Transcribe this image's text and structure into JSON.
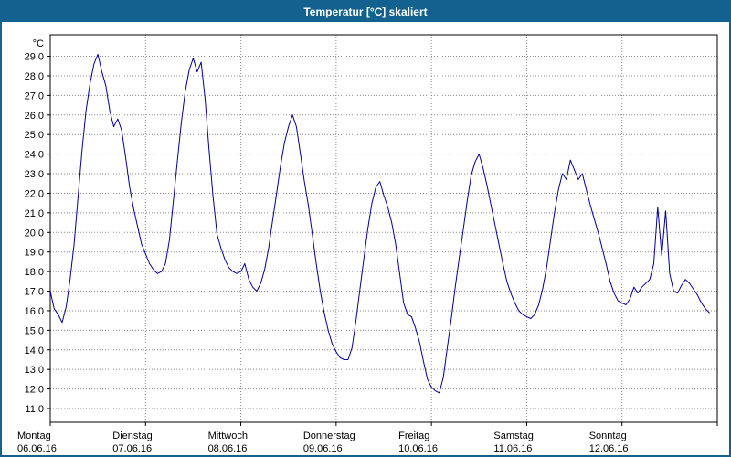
{
  "window": {
    "title": "Temperatur [°C] skaliert"
  },
  "colors": {
    "titlebar": "#12618e",
    "line": "#00009a",
    "grid": "#8a8a8a",
    "axis": "#000000",
    "text": "#000000"
  },
  "chart_data": {
    "type": "line",
    "title": "Temperatur [°C] skaliert",
    "y_axis": {
      "unit": "°C",
      "min": 11,
      "max": 29,
      "step": 1,
      "decimal_separator": ",",
      "tick_labels": [
        "11,0",
        "12,0",
        "13,0",
        "14,0",
        "15,0",
        "16,0",
        "17,0",
        "18,0",
        "19,0",
        "20,0",
        "21,0",
        "22,0",
        "23,0",
        "24,0",
        "25,0",
        "26,0",
        "27,0",
        "28,0",
        "29,0"
      ]
    },
    "x_axis": {
      "unit": "days",
      "days": [
        {
          "label": "Montag",
          "date": "06.06.16"
        },
        {
          "label": "Dienstag",
          "date": "07.06.16"
        },
        {
          "label": "Mittwoch",
          "date": "08.06.16"
        },
        {
          "label": "Donnerstag",
          "date": "09.06.16"
        },
        {
          "label": "Freitag",
          "date": "10.06.16"
        },
        {
          "label": "Samstag",
          "date": "11.06.16"
        },
        {
          "label": "Sonntag",
          "date": "12.06.16"
        }
      ]
    },
    "grid": true,
    "legend": false,
    "series": [
      {
        "name": "Temperatur [°C]",
        "x_unit": "hours_from_monday_00",
        "points": [
          [
            0,
            17.0
          ],
          [
            1,
            16.1
          ],
          [
            2,
            15.8
          ],
          [
            3,
            15.4
          ],
          [
            4,
            16.2
          ],
          [
            5,
            17.6
          ],
          [
            6,
            19.4
          ],
          [
            7,
            21.8
          ],
          [
            8,
            24.2
          ],
          [
            9,
            26.2
          ],
          [
            10,
            27.6
          ],
          [
            11,
            28.6
          ],
          [
            12,
            29.1
          ],
          [
            13,
            28.2
          ],
          [
            14,
            27.5
          ],
          [
            15,
            26.2
          ],
          [
            16,
            25.4
          ],
          [
            17,
            25.8
          ],
          [
            18,
            25.2
          ],
          [
            19,
            23.8
          ],
          [
            20,
            22.3
          ],
          [
            21,
            21.2
          ],
          [
            22,
            20.3
          ],
          [
            23,
            19.4
          ],
          [
            24,
            18.9
          ],
          [
            25,
            18.4
          ],
          [
            26,
            18.1
          ],
          [
            27,
            17.9
          ],
          [
            28,
            18.0
          ],
          [
            29,
            18.4
          ],
          [
            30,
            19.6
          ],
          [
            31,
            21.6
          ],
          [
            32,
            23.6
          ],
          [
            33,
            25.6
          ],
          [
            34,
            27.2
          ],
          [
            35,
            28.3
          ],
          [
            36,
            28.9
          ],
          [
            37,
            28.2
          ],
          [
            38,
            28.7
          ],
          [
            39,
            26.8
          ],
          [
            40,
            24.2
          ],
          [
            41,
            21.8
          ],
          [
            42,
            19.9
          ],
          [
            43,
            19.2
          ],
          [
            44,
            18.6
          ],
          [
            45,
            18.2
          ],
          [
            46,
            18.0
          ],
          [
            47,
            17.9
          ],
          [
            48,
            18.0
          ],
          [
            49,
            18.4
          ],
          [
            50,
            17.6
          ],
          [
            51,
            17.2
          ],
          [
            52,
            17.0
          ],
          [
            53,
            17.4
          ],
          [
            54,
            18.1
          ],
          [
            55,
            19.2
          ],
          [
            56,
            20.6
          ],
          [
            57,
            22.0
          ],
          [
            58,
            23.4
          ],
          [
            59,
            24.6
          ],
          [
            60,
            25.4
          ],
          [
            61,
            26.0
          ],
          [
            62,
            25.4
          ],
          [
            63,
            24.0
          ],
          [
            64,
            22.6
          ],
          [
            65,
            21.4
          ],
          [
            66,
            19.9
          ],
          [
            67,
            18.4
          ],
          [
            68,
            17.0
          ],
          [
            69,
            15.9
          ],
          [
            70,
            15.0
          ],
          [
            71,
            14.3
          ],
          [
            72,
            13.9
          ],
          [
            73,
            13.6
          ],
          [
            74,
            13.5
          ],
          [
            75,
            13.5
          ],
          [
            76,
            14.1
          ],
          [
            77,
            15.5
          ],
          [
            78,
            17.1
          ],
          [
            79,
            18.7
          ],
          [
            80,
            20.2
          ],
          [
            81,
            21.5
          ],
          [
            82,
            22.3
          ],
          [
            83,
            22.6
          ],
          [
            84,
            21.9
          ],
          [
            85,
            21.3
          ],
          [
            86,
            20.5
          ],
          [
            87,
            19.4
          ],
          [
            88,
            17.9
          ],
          [
            89,
            16.4
          ],
          [
            90,
            15.8
          ],
          [
            91,
            15.7
          ],
          [
            92,
            15.1
          ],
          [
            93,
            14.4
          ],
          [
            94,
            13.4
          ],
          [
            95,
            12.5
          ],
          [
            96,
            12.1
          ],
          [
            97,
            11.9
          ],
          [
            98,
            11.8
          ],
          [
            99,
            12.6
          ],
          [
            100,
            14.1
          ],
          [
            101,
            15.6
          ],
          [
            102,
            17.2
          ],
          [
            103,
            18.7
          ],
          [
            104,
            20.1
          ],
          [
            105,
            21.6
          ],
          [
            106,
            22.9
          ],
          [
            107,
            23.6
          ],
          [
            108,
            24.0
          ],
          [
            109,
            23.3
          ],
          [
            110,
            22.4
          ],
          [
            111,
            21.4
          ],
          [
            112,
            20.4
          ],
          [
            113,
            19.4
          ],
          [
            114,
            18.4
          ],
          [
            115,
            17.5
          ],
          [
            116,
            16.9
          ],
          [
            117,
            16.4
          ],
          [
            118,
            16.0
          ],
          [
            119,
            15.8
          ],
          [
            120,
            15.7
          ],
          [
            121,
            15.6
          ],
          [
            122,
            15.8
          ],
          [
            123,
            16.3
          ],
          [
            124,
            17.1
          ],
          [
            125,
            18.2
          ],
          [
            126,
            19.6
          ],
          [
            127,
            21.0
          ],
          [
            128,
            22.2
          ],
          [
            129,
            23.0
          ],
          [
            130,
            22.7
          ],
          [
            131,
            23.7
          ],
          [
            132,
            23.2
          ],
          [
            133,
            22.7
          ],
          [
            134,
            23.0
          ],
          [
            135,
            22.2
          ],
          [
            136,
            21.4
          ],
          [
            137,
            20.7
          ],
          [
            138,
            20.0
          ],
          [
            139,
            19.2
          ],
          [
            140,
            18.4
          ],
          [
            141,
            17.5
          ],
          [
            142,
            16.9
          ],
          [
            143,
            16.5
          ],
          [
            144,
            16.4
          ],
          [
            145,
            16.3
          ],
          [
            146,
            16.6
          ],
          [
            147,
            17.2
          ],
          [
            148,
            16.9
          ],
          [
            149,
            17.2
          ],
          [
            150,
            17.4
          ],
          [
            151,
            17.6
          ],
          [
            152,
            18.4
          ],
          [
            153,
            21.3
          ],
          [
            154,
            18.8
          ],
          [
            155,
            21.1
          ],
          [
            156,
            17.9
          ],
          [
            157,
            17.0
          ],
          [
            158,
            16.9
          ],
          [
            159,
            17.3
          ],
          [
            160,
            17.6
          ],
          [
            161,
            17.4
          ],
          [
            162,
            17.1
          ],
          [
            163,
            16.8
          ],
          [
            164,
            16.4
          ],
          [
            165,
            16.1
          ],
          [
            166,
            15.9
          ]
        ]
      }
    ]
  }
}
